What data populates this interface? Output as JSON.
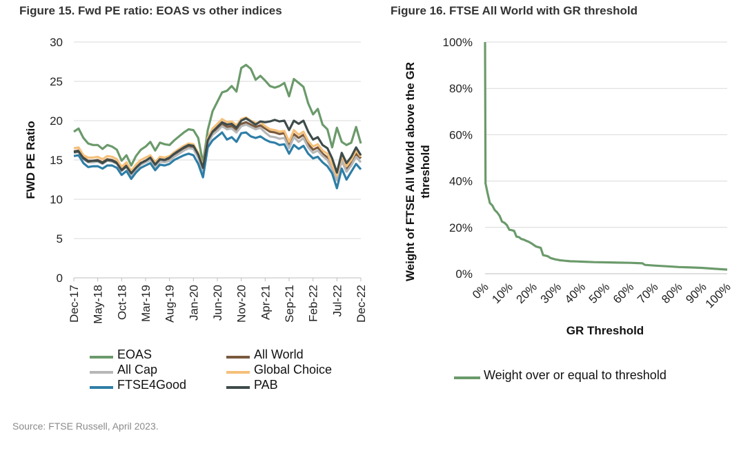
{
  "figures": {
    "left_title": "Figure 15. Fwd PE ratio: EOAS vs other indices",
    "right_title": "Figure 16. FTSE All World with GR threshold"
  },
  "source": "Source: FTSE Russell, April 2023.",
  "chart_data": [
    {
      "type": "line",
      "title": "Figure 15. Fwd PE ratio: EOAS vs other indices",
      "ylabel": "FWD PE Ratio",
      "xlabel": "",
      "ylim": [
        0,
        30
      ],
      "yticks": [
        0,
        5,
        10,
        15,
        20,
        25,
        30
      ],
      "x_tick_labels": [
        "Dec-17",
        "May-18",
        "Oct-18",
        "Mar-19",
        "Aug-19",
        "Jan-20",
        "Jun-20",
        "Nov-20",
        "Apr-21",
        "Sep-21",
        "Feb-22",
        "Jul-22",
        "Dec-22"
      ],
      "x_points": 61,
      "grid": "horizontal",
      "legend_position": "bottom",
      "series": [
        {
          "name": "EOAS",
          "color": "#6b9a6b",
          "values": [
            18.6,
            19.0,
            17.8,
            17.1,
            16.9,
            16.9,
            16.4,
            16.9,
            16.7,
            16.3,
            14.9,
            15.6,
            14.3,
            15.5,
            16.3,
            16.7,
            17.3,
            16.2,
            17.2,
            17.0,
            16.9,
            17.5,
            18.0,
            18.5,
            18.9,
            18.8,
            17.8,
            14.6,
            18.8,
            21.2,
            22.4,
            23.6,
            23.8,
            24.4,
            23.7,
            26.7,
            27.1,
            26.6,
            25.2,
            25.7,
            25.1,
            24.4,
            24.2,
            24.4,
            24.8,
            23.1,
            25.3,
            24.8,
            24.3,
            22.2,
            20.8,
            21.5,
            19.5,
            18.9,
            16.6,
            19.1,
            17.3,
            16.9,
            17.2,
            19.2,
            17.1
          ]
        },
        {
          "name": "All World",
          "color": "#7a5a3e",
          "values": [
            16.1,
            16.2,
            15.3,
            14.9,
            14.9,
            15.0,
            14.7,
            15.1,
            15.0,
            14.7,
            13.8,
            14.3,
            13.2,
            14.0,
            14.6,
            14.9,
            15.2,
            14.3,
            15.0,
            14.9,
            15.1,
            15.6,
            16.0,
            16.4,
            16.7,
            16.6,
            15.5,
            13.8,
            17.3,
            18.4,
            18.9,
            19.6,
            19.2,
            19.3,
            18.8,
            19.6,
            19.8,
            19.5,
            19.2,
            19.4,
            19.0,
            18.6,
            18.5,
            18.3,
            18.4,
            16.9,
            18.3,
            17.8,
            18.2,
            17.0,
            16.3,
            16.6,
            15.8,
            15.3,
            14.0,
            12.6,
            15.2,
            13.8,
            14.6,
            15.8,
            15.2
          ]
        },
        {
          "name": "All Cap",
          "color": "#b7b7b7",
          "values": [
            15.9,
            16.0,
            15.1,
            14.7,
            14.7,
            14.8,
            14.5,
            14.9,
            14.8,
            14.5,
            13.6,
            14.1,
            13.0,
            13.8,
            14.4,
            14.7,
            15.0,
            14.1,
            14.8,
            14.7,
            14.9,
            15.4,
            15.8,
            16.2,
            16.5,
            16.4,
            15.3,
            13.6,
            17.1,
            18.2,
            18.7,
            19.3,
            18.9,
            19.0,
            18.5,
            19.3,
            19.5,
            19.2,
            18.9,
            19.1,
            18.5,
            18.0,
            17.9,
            17.7,
            17.8,
            16.5,
            17.9,
            17.3,
            17.8,
            16.6,
            15.9,
            16.2,
            15.5,
            15.0,
            13.8,
            12.4,
            14.9,
            13.5,
            14.3,
            15.4,
            14.7
          ]
        },
        {
          "name": "Global Choice",
          "color": "#f5c07a",
          "values": [
            16.5,
            16.6,
            15.6,
            15.3,
            15.3,
            15.4,
            15.1,
            15.5,
            15.4,
            15.1,
            14.1,
            14.7,
            13.6,
            14.4,
            15.0,
            15.3,
            15.6,
            14.7,
            15.4,
            15.3,
            15.5,
            16.0,
            16.4,
            16.8,
            17.1,
            17.0,
            15.9,
            14.2,
            17.8,
            19.0,
            19.6,
            20.2,
            19.8,
            19.9,
            19.4,
            20.2,
            20.4,
            20.0,
            19.7,
            19.8,
            19.3,
            18.9,
            18.8,
            18.6,
            18.7,
            17.3,
            18.8,
            18.2,
            18.6,
            17.4,
            16.7,
            17.0,
            16.2,
            15.8,
            14.4,
            13.0,
            15.6,
            14.2,
            15.0,
            16.2,
            15.4
          ]
        },
        {
          "name": "FTSE4Good",
          "color": "#2e7ea6",
          "values": [
            15.5,
            15.6,
            14.6,
            14.1,
            14.2,
            14.2,
            13.9,
            14.3,
            14.3,
            14.0,
            13.1,
            13.6,
            12.6,
            13.4,
            14.0,
            14.3,
            14.6,
            13.7,
            14.4,
            14.3,
            14.5,
            15.0,
            15.3,
            15.6,
            15.8,
            15.6,
            14.5,
            12.8,
            16.6,
            17.5,
            18.0,
            18.5,
            17.6,
            17.9,
            17.3,
            18.4,
            18.5,
            18.0,
            17.8,
            18.0,
            17.6,
            17.3,
            17.2,
            16.9,
            17.0,
            15.8,
            16.9,
            16.4,
            16.8,
            15.8,
            15.2,
            15.4,
            14.7,
            14.2,
            13.3,
            11.4,
            13.9,
            12.5,
            13.5,
            14.5,
            13.8
          ]
        },
        {
          "name": "PAB",
          "color": "#3e4b4b",
          "values": [
            16.0,
            16.1,
            15.2,
            14.8,
            14.9,
            14.9,
            14.6,
            15.0,
            14.9,
            14.6,
            13.7,
            14.2,
            13.3,
            14.0,
            14.6,
            14.9,
            15.3,
            14.4,
            15.1,
            15.0,
            15.3,
            15.8,
            16.2,
            16.6,
            16.9,
            16.8,
            15.7,
            14.0,
            17.5,
            18.6,
            19.2,
            19.8,
            19.5,
            19.6,
            19.1,
            20.0,
            20.3,
            19.9,
            19.5,
            19.9,
            19.8,
            19.9,
            20.1,
            19.9,
            20.0,
            18.8,
            20.0,
            19.6,
            20.0,
            18.6,
            17.6,
            17.9,
            16.9,
            16.5,
            15.2,
            13.4,
            15.9,
            14.6,
            15.4,
            16.6,
            15.6
          ]
        }
      ]
    },
    {
      "type": "line",
      "title": "Figure 16. FTSE All World with GR threshold",
      "xlabel": "GR Threshold",
      "ylabel": "Weight of FTSE All World above the GR threshold",
      "ylim": [
        0,
        100
      ],
      "yticks": [
        "0%",
        "20%",
        "40%",
        "60%",
        "80%",
        "100%"
      ],
      "xticks": [
        "0%",
        "10%",
        "20%",
        "30%",
        "40%",
        "50%",
        "60%",
        "70%",
        "80%",
        "90%",
        "100%"
      ],
      "grid": "horizontal",
      "legend_position": "bottom",
      "series": [
        {
          "name": "Weight over or equal to threshold",
          "color": "#6b9a6b",
          "x": [
            0,
            0.2,
            1,
            2,
            3,
            4,
            5,
            6,
            7,
            8,
            9,
            10,
            11,
            12,
            13,
            14,
            15,
            16,
            17,
            18,
            19,
            20,
            21,
            22,
            23,
            24,
            25,
            26,
            27,
            28,
            29,
            30,
            31,
            32,
            33,
            34,
            35,
            38,
            40,
            45,
            50,
            55,
            60,
            65,
            66,
            70,
            75,
            80,
            85,
            90,
            95,
            100
          ],
          "y": [
            100,
            39,
            35,
            30.5,
            29.5,
            27.5,
            26.5,
            25,
            22.5,
            22,
            21,
            19,
            18.8,
            18.5,
            16,
            15.8,
            15,
            14.7,
            14.2,
            13.8,
            13.2,
            12.5,
            11.8,
            11.5,
            11.2,
            8,
            7.8,
            7.5,
            6.8,
            6.5,
            6.2,
            6,
            5.8,
            5.7,
            5.6,
            5.5,
            5.4,
            5.3,
            5.2,
            5,
            4.9,
            4.8,
            4.7,
            4.5,
            3.8,
            3.5,
            3.2,
            2.9,
            2.7,
            2.5,
            2.1,
            1.8
          ]
        }
      ]
    }
  ]
}
